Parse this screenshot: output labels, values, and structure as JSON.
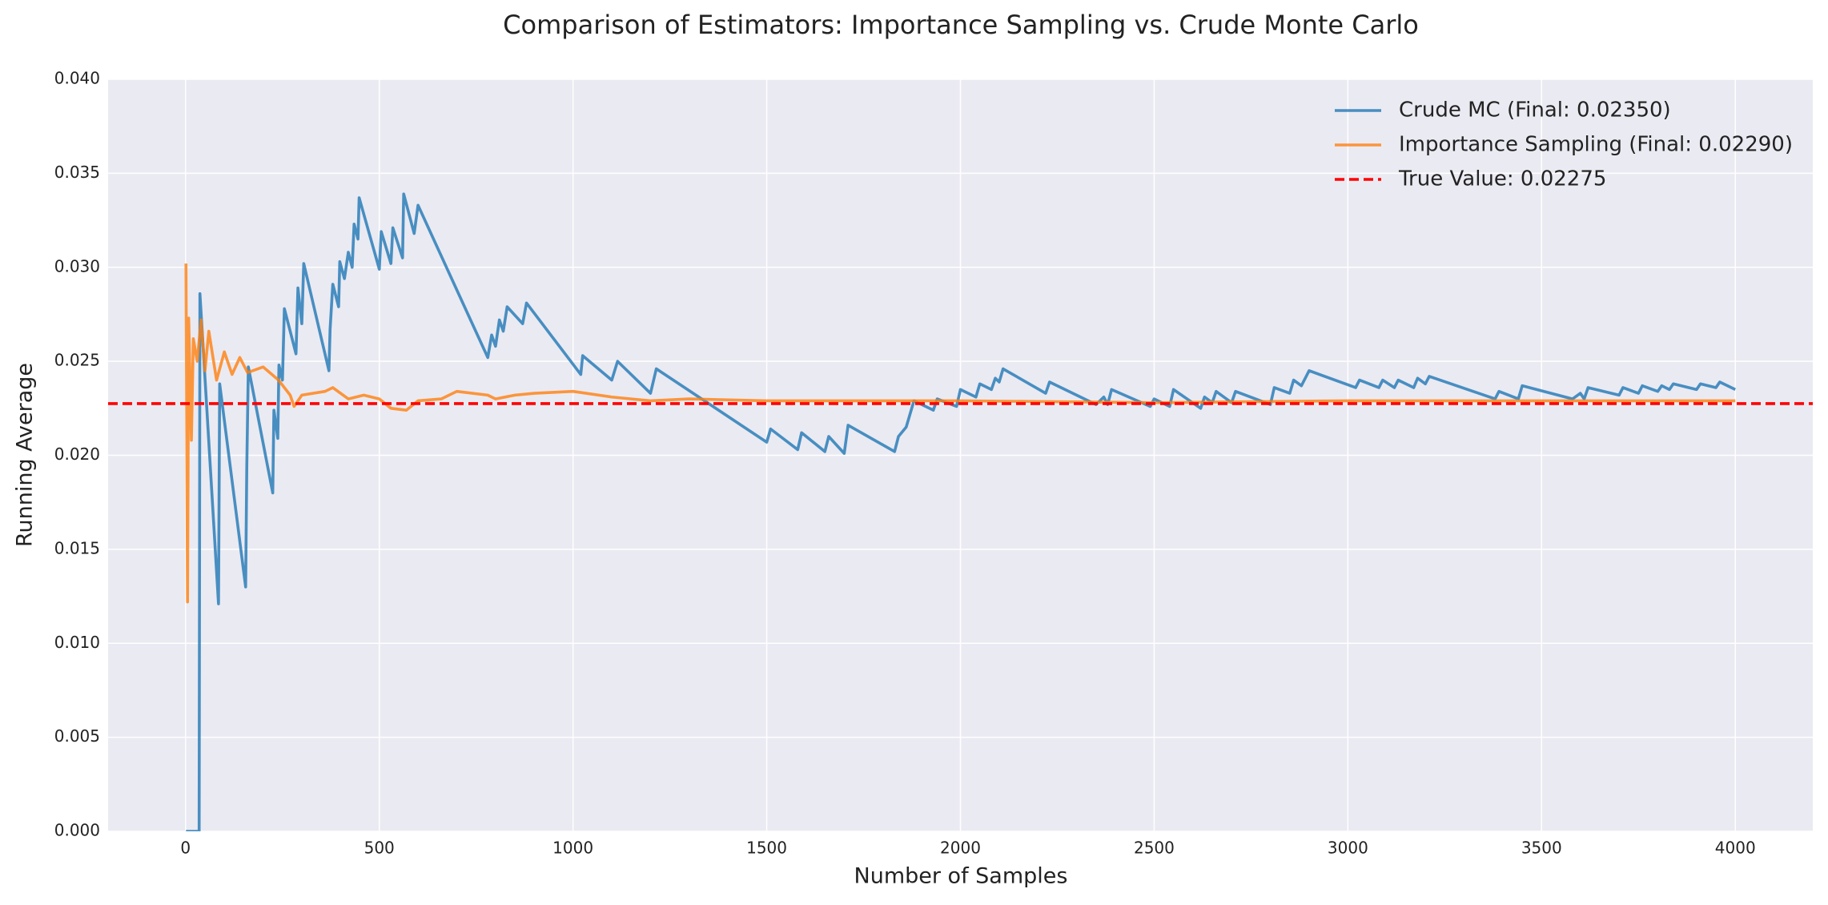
{
  "chart_data": {
    "type": "line",
    "title": "Comparison of Estimators: Importance Sampling vs. Crude Monte Carlo",
    "xlabel": "Number of Samples",
    "ylabel": "Running Average",
    "xlim": [
      -200,
      4200
    ],
    "ylim": [
      0,
      0.04
    ],
    "xticks": [
      0,
      500,
      1000,
      1500,
      2000,
      2500,
      3000,
      3500,
      4000
    ],
    "yticks": [
      {
        "value": 0,
        "label": "0.000"
      },
      {
        "value": 0.005,
        "label": "0.005"
      },
      {
        "value": 0.01,
        "label": "0.010"
      },
      {
        "value": 0.015,
        "label": "0.015"
      },
      {
        "value": 0.02,
        "label": "0.020"
      },
      {
        "value": 0.025,
        "label": "0.025"
      },
      {
        "value": 0.03,
        "label": "0.030"
      },
      {
        "value": 0.035,
        "label": "0.035"
      },
      {
        "value": 0.04,
        "label": "0.040"
      }
    ],
    "grid": true,
    "legend": "upper right",
    "series": [
      {
        "name": "Crude MC (Final: 0.02350)",
        "color": "#1f77b4",
        "x": [
          1,
          35,
          37,
          85,
          88,
          155,
          158,
          162,
          225,
          228,
          238,
          241,
          250,
          255,
          285,
          290,
          300,
          305,
          370,
          373,
          380,
          395,
          398,
          410,
          420,
          430,
          435,
          445,
          448,
          500,
          505,
          530,
          535,
          560,
          563,
          590,
          600,
          780,
          790,
          800,
          810,
          820,
          830,
          870,
          880,
          1020,
          1025,
          1100,
          1115,
          1200,
          1215,
          1500,
          1510,
          1580,
          1590,
          1650,
          1660,
          1700,
          1710,
          1830,
          1840,
          1860,
          1870,
          1880,
          1930,
          1940,
          1990,
          2000,
          2040,
          2050,
          2080,
          2090,
          2100,
          2110,
          2220,
          2230,
          2350,
          2370,
          2380,
          2390,
          2490,
          2500,
          2540,
          2550,
          2620,
          2630,
          2650,
          2660,
          2700,
          2710,
          2800,
          2810,
          2850,
          2860,
          2880,
          2900,
          3020,
          3030,
          3080,
          3090,
          3120,
          3130,
          3170,
          3180,
          3200,
          3210,
          3380,
          3390,
          3440,
          3450,
          3580,
          3600,
          3610,
          3620,
          3700,
          3710,
          3750,
          3760,
          3800,
          3810,
          3830,
          3840,
          3900,
          3910,
          3950,
          3960,
          4000
        ],
        "values": [
          0,
          0,
          0.0286,
          0.0121,
          0.0238,
          0.013,
          0.0194,
          0.0247,
          0.018,
          0.0224,
          0.0209,
          0.0248,
          0.024,
          0.0278,
          0.0254,
          0.0289,
          0.027,
          0.0302,
          0.0245,
          0.0267,
          0.0291,
          0.0279,
          0.0303,
          0.0294,
          0.0308,
          0.03,
          0.0323,
          0.0315,
          0.0337,
          0.0299,
          0.0319,
          0.0302,
          0.0321,
          0.0305,
          0.0339,
          0.0318,
          0.0333,
          0.0252,
          0.0264,
          0.0258,
          0.0272,
          0.0266,
          0.0279,
          0.027,
          0.0281,
          0.0243,
          0.0253,
          0.024,
          0.025,
          0.0233,
          0.0246,
          0.0207,
          0.0214,
          0.0203,
          0.0212,
          0.0202,
          0.021,
          0.0201,
          0.0216,
          0.0202,
          0.021,
          0.0215,
          0.0222,
          0.0229,
          0.0224,
          0.023,
          0.0226,
          0.0235,
          0.0231,
          0.0238,
          0.0235,
          0.0241,
          0.0239,
          0.0246,
          0.0233,
          0.0239,
          0.0227,
          0.0231,
          0.0227,
          0.0235,
          0.0226,
          0.023,
          0.0226,
          0.0235,
          0.0225,
          0.0231,
          0.0228,
          0.0234,
          0.0228,
          0.0234,
          0.0227,
          0.0236,
          0.0233,
          0.024,
          0.0237,
          0.0245,
          0.0236,
          0.024,
          0.0236,
          0.024,
          0.0236,
          0.024,
          0.0236,
          0.0241,
          0.0238,
          0.0242,
          0.023,
          0.0234,
          0.023,
          0.0237,
          0.023,
          0.0233,
          0.023,
          0.0236,
          0.0232,
          0.0236,
          0.0233,
          0.0237,
          0.0234,
          0.0237,
          0.0235,
          0.0238,
          0.0235,
          0.0238,
          0.0236,
          0.0239,
          0.0235
        ]
      },
      {
        "name": "Importance Sampling (Final: 0.02290)",
        "color": "#ff7f0e",
        "x": [
          1,
          5,
          8,
          15,
          20,
          30,
          40,
          50,
          60,
          80,
          100,
          120,
          140,
          160,
          200,
          240,
          270,
          280,
          300,
          360,
          380,
          420,
          460,
          500,
          530,
          570,
          600,
          660,
          700,
          780,
          800,
          850,
          900,
          1000,
          1100,
          1200,
          1300,
          1500,
          1800,
          2000,
          2500,
          3000,
          3500,
          4000
        ],
        "values": [
          0.0302,
          0.0122,
          0.0273,
          0.0208,
          0.0262,
          0.025,
          0.0272,
          0.0245,
          0.0266,
          0.024,
          0.0255,
          0.0243,
          0.0252,
          0.0244,
          0.0247,
          0.024,
          0.0232,
          0.0226,
          0.0232,
          0.0234,
          0.0236,
          0.023,
          0.0232,
          0.023,
          0.0225,
          0.0224,
          0.0229,
          0.023,
          0.0234,
          0.0232,
          0.023,
          0.0232,
          0.0233,
          0.0234,
          0.0231,
          0.0229,
          0.023,
          0.0229,
          0.0229,
          0.0229,
          0.0228,
          0.0229,
          0.0229,
          0.0229
        ]
      }
    ],
    "reference_lines": [
      {
        "name": "True Value: 0.02275",
        "value": 0.02275,
        "color": "#ff0000"
      }
    ]
  }
}
